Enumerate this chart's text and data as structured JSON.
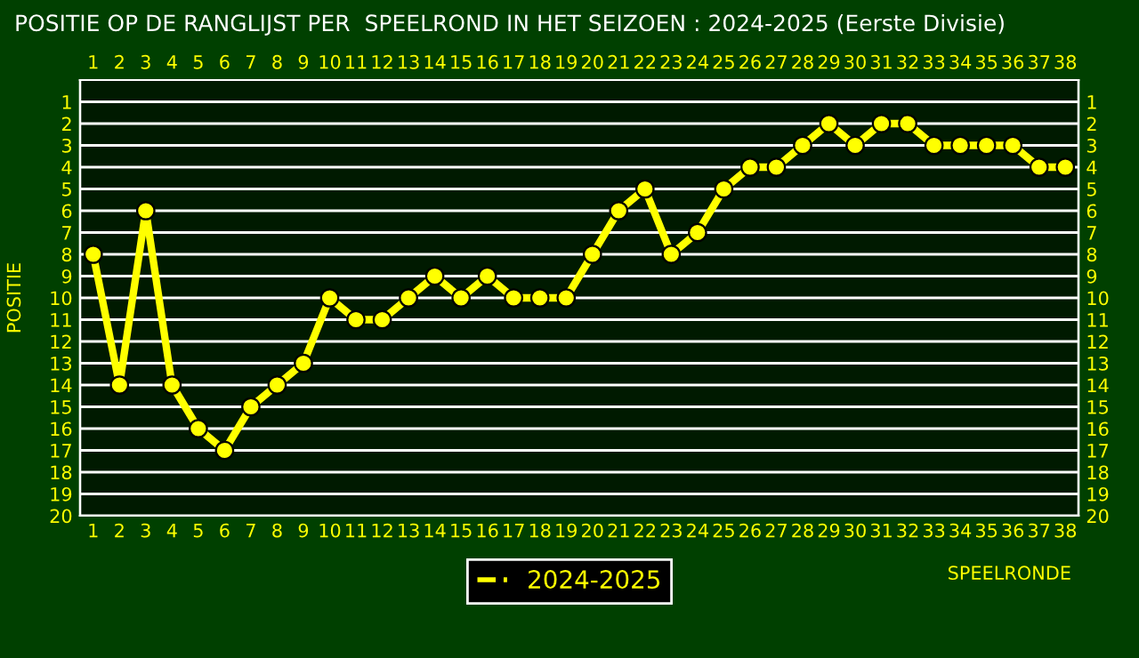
{
  "chart_data": {
    "type": "line",
    "title": "POSITIE OP DE RANGLIJST PER  SPEELROND IN HET SEIZOEN : 2024-2025 (Eerste Divisie)",
    "xlabel": "SPEELRONDE",
    "ylabel": "POSITIE",
    "x": [
      1,
      2,
      3,
      4,
      5,
      6,
      7,
      8,
      9,
      10,
      11,
      12,
      13,
      14,
      15,
      16,
      17,
      18,
      19,
      20,
      21,
      22,
      23,
      24,
      25,
      26,
      27,
      28,
      29,
      30,
      31,
      32,
      33,
      34,
      35,
      36,
      37,
      38
    ],
    "series": [
      {
        "name": "2024-2025",
        "color": "#ffff00",
        "values": [
          8,
          14,
          6,
          14,
          16,
          17,
          15,
          14,
          13,
          10,
          11,
          11,
          10,
          9,
          10,
          9,
          10,
          10,
          10,
          8,
          6,
          5,
          8,
          7,
          5,
          4,
          4,
          3,
          2,
          3,
          2,
          2,
          3,
          3,
          3,
          3,
          4,
          4
        ]
      }
    ],
    "xlim": [
      0.5,
      38.5
    ],
    "xticks": [
      1,
      2,
      3,
      4,
      5,
      6,
      7,
      8,
      9,
      10,
      11,
      12,
      13,
      14,
      15,
      16,
      17,
      18,
      19,
      20,
      21,
      22,
      23,
      24,
      25,
      26,
      27,
      28,
      29,
      30,
      31,
      32,
      33,
      34,
      35,
      36,
      37,
      38
    ],
    "x2lim": [
      0.5,
      38.5
    ],
    "x2ticks": [
      1,
      2,
      3,
      4,
      5,
      6,
      7,
      8,
      9,
      10,
      11,
      12,
      13,
      14,
      15,
      16,
      17,
      18,
      19,
      20,
      21,
      22,
      23,
      24,
      25,
      26,
      27,
      28,
      29,
      30,
      31,
      32,
      33,
      34,
      35,
      36,
      37,
      38
    ],
    "ylim": [
      20,
      0
    ],
    "yticks": [
      1,
      2,
      3,
      4,
      5,
      6,
      7,
      8,
      9,
      10,
      11,
      12,
      13,
      14,
      15,
      16,
      17,
      18,
      19,
      20
    ],
    "y2lim": [
      20,
      0
    ],
    "y2ticks": [
      1,
      2,
      3,
      4,
      5,
      6,
      7,
      8,
      9,
      10,
      11,
      12,
      13,
      14,
      15,
      16,
      17,
      18,
      19,
      20
    ],
    "grid": "y",
    "legend": "bottom",
    "marker": "circle",
    "line_style": "solid"
  }
}
